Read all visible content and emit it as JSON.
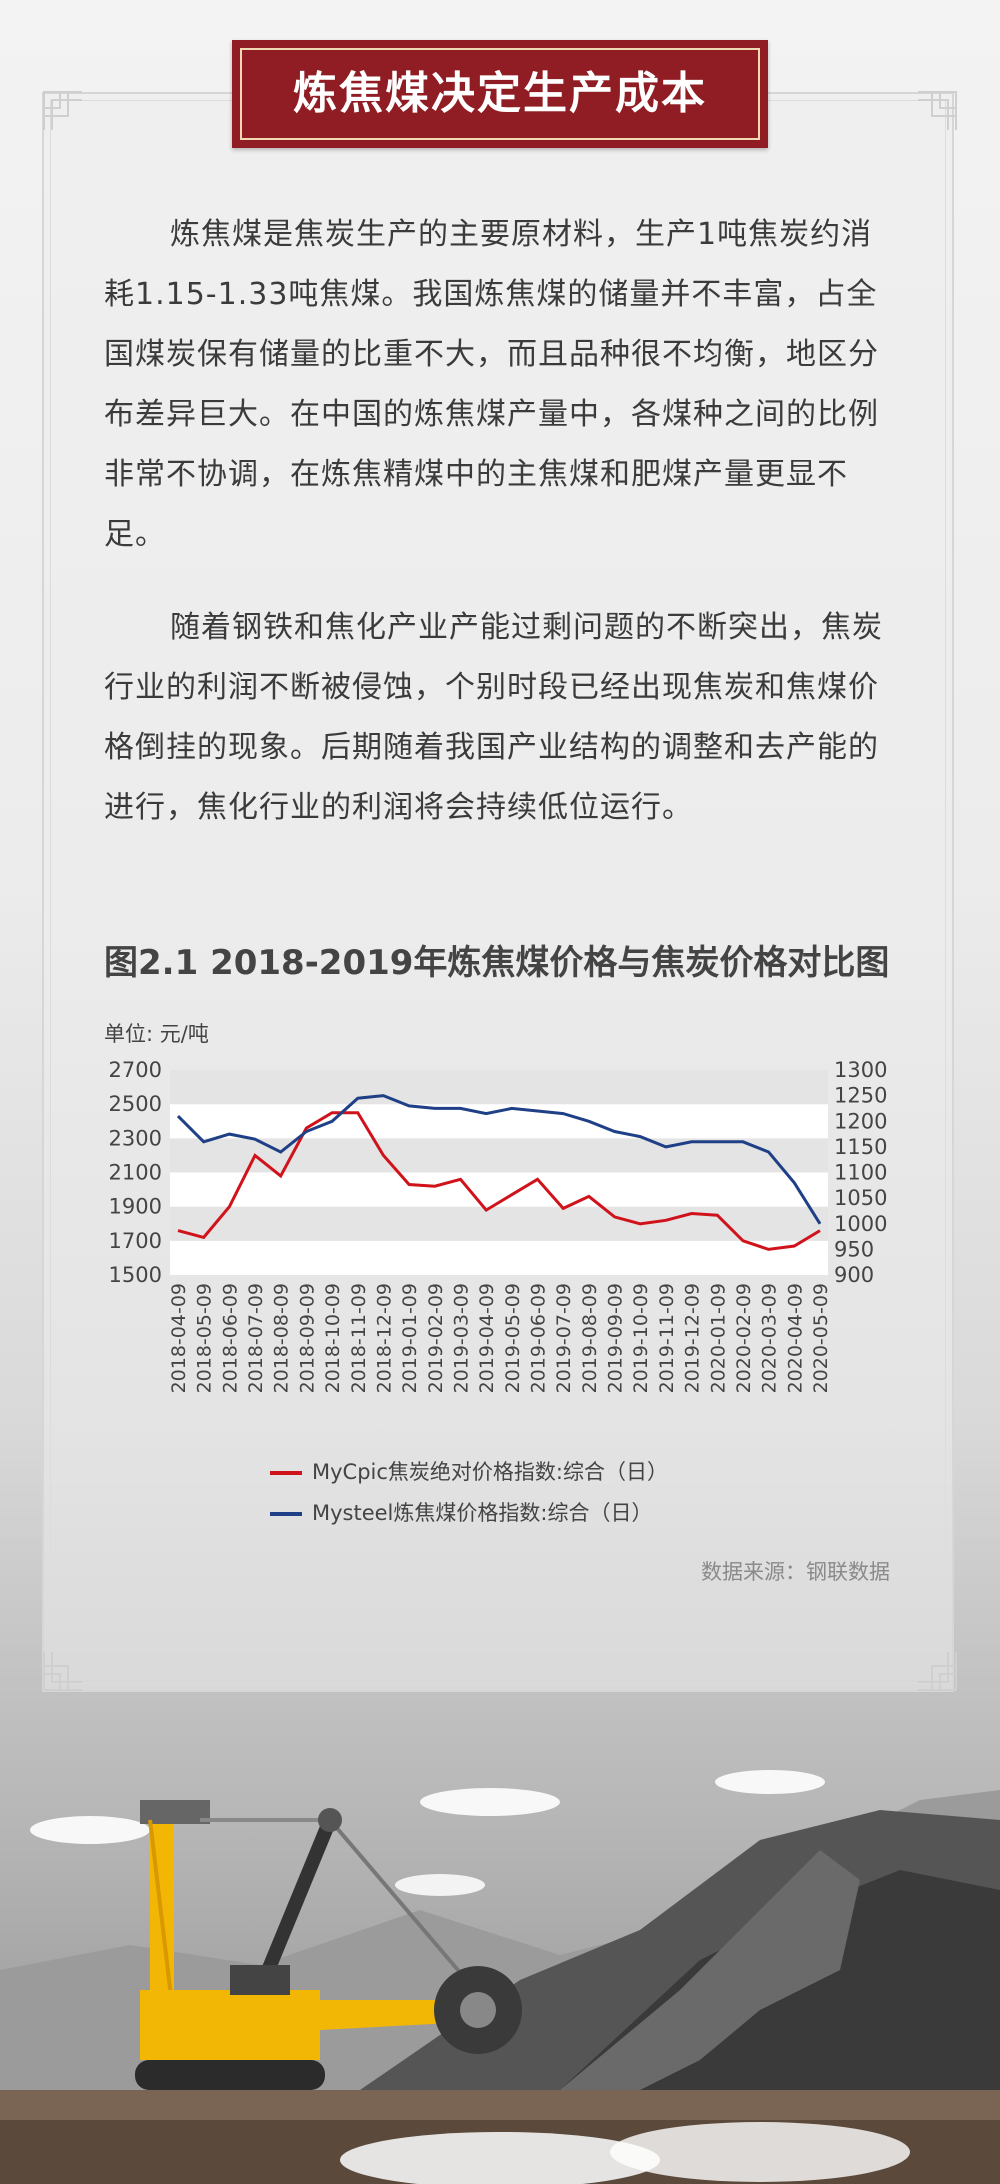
{
  "header": {
    "title": "炼焦煤决定生产成本"
  },
  "paragraphs": [
    "炼焦煤是焦炭生产的主要原材料，生产1吨焦炭约消耗1.15-1.33吨焦煤。我国炼焦煤的储量并不丰富，占全国煤炭保有储量的比重不大，而且品种很不均衡，地区分布差异巨大。在中国的炼焦煤产量中，各煤种之间的比例非常不协调，在炼焦精煤中的主焦煤和肥煤产量更显不足。",
    "随着钢铁和焦化产业产能过剩问题的不断突出，焦炭行业的利润不断被侵蚀，个别时段已经出现焦炭和焦煤价格倒挂的现象。后期随着我国产业结构的调整和去产能的进行，焦化行业的利润将会持续低位运行。"
  ],
  "chart_data": {
    "type": "line",
    "title": "图2.1 2018-2019年炼焦煤价格与焦炭价格对比图",
    "unit_label": "单位: 元/吨",
    "source": "数据来源：钢联数据",
    "categories": [
      "2018-04-09",
      "2018-05-09",
      "2018-06-09",
      "2018-07-09",
      "2018-08-09",
      "2018-09-09",
      "2018-10-09",
      "2018-11-09",
      "2018-12-09",
      "2019-01-09",
      "2019-02-09",
      "2019-03-09",
      "2019-04-09",
      "2019-05-09",
      "2019-06-09",
      "2019-07-09",
      "2019-08-09",
      "2019-09-09",
      "2019-10-09",
      "2019-11-09",
      "2019-12-09",
      "2020-01-09",
      "2020-02-09",
      "2020-03-09",
      "2020-04-09",
      "2020-05-09"
    ],
    "left_axis": {
      "min": 1500,
      "max": 2700,
      "ticks": [
        1500,
        1700,
        1900,
        2100,
        2300,
        2500,
        2700
      ]
    },
    "right_axis": {
      "min": 900,
      "max": 1300,
      "ticks": [
        900,
        950,
        1000,
        1050,
        1100,
        1150,
        1200,
        1250,
        1300
      ]
    },
    "grid": true,
    "legend_position": "bottom",
    "series": [
      {
        "name": "MyCpic焦炭绝对价格指数:综合（日）",
        "axis": "left",
        "color": "#d0121b",
        "values": [
          1760,
          1720,
          1900,
          2200,
          2080,
          2360,
          2450,
          2450,
          2200,
          2030,
          2020,
          2060,
          1880,
          1970,
          2060,
          1890,
          1960,
          1840,
          1800,
          1820,
          1860,
          1850,
          1700,
          1650,
          1670,
          1760
        ]
      },
      {
        "name": "Mysteel炼焦煤价格指数:综合（日）",
        "axis": "right",
        "color": "#1f3f86",
        "values": [
          1210,
          1160,
          1175,
          1165,
          1140,
          1180,
          1200,
          1245,
          1250,
          1230,
          1225,
          1225,
          1215,
          1225,
          1220,
          1215,
          1200,
          1180,
          1170,
          1150,
          1160,
          1160,
          1160,
          1140,
          1080,
          1000
        ]
      }
    ]
  },
  "colors": {
    "title_bg": "#8f1d23",
    "series_red": "#d0121b",
    "series_blue": "#1f3f86"
  }
}
